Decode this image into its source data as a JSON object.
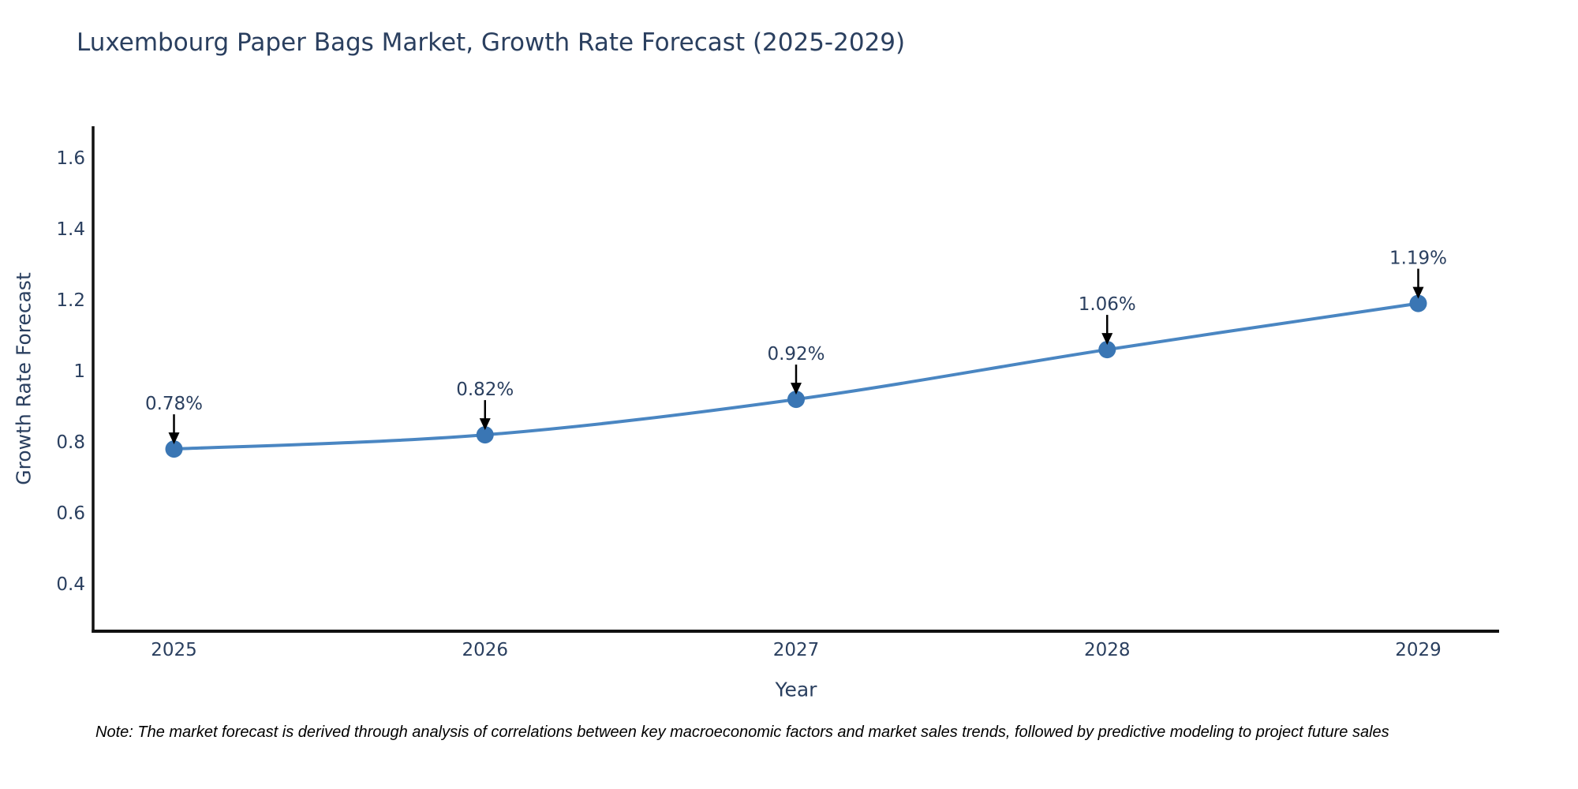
{
  "page": {
    "note": "Note: The market forecast is derived through analysis of correlations between key macroeconomic factors and market sales trends, followed by predictive modeling to project future sales"
  },
  "chart_data": {
    "type": "line",
    "title": "Luxembourg Paper Bags Market, Growth Rate Forecast (2025-2029)",
    "xlabel": "Year",
    "ylabel": "Growth Rate Forecast",
    "x": [
      2025,
      2026,
      2027,
      2028,
      2029
    ],
    "series": [
      {
        "name": "Growth Rate Forecast",
        "values": [
          0.78,
          0.82,
          0.92,
          1.06,
          1.19
        ]
      }
    ],
    "point_labels": [
      "0.78%",
      "0.82%",
      "0.92%",
      "1.06%",
      "1.19%"
    ],
    "xticks": {
      "values": [
        2025,
        2026,
        2027,
        2028,
        2029
      ],
      "labels": [
        "2025",
        "2026",
        "2027",
        "2028",
        "2029"
      ]
    },
    "yticks": {
      "values": [
        0.4,
        0.6,
        0.8,
        1.0,
        1.2,
        1.4,
        1.6
      ],
      "labels": [
        "0.4",
        "0.6",
        "0.8",
        "1",
        "1.2",
        "1.4",
        "1.6"
      ]
    },
    "xlim": [
      2024.74,
      2029.26
    ],
    "ylim": [
      0.267,
      1.689
    ],
    "grid": false,
    "legend": false,
    "line_shape": "spline",
    "colors": {
      "line": "#4a86c2",
      "marker": "#3a76b4",
      "axis": "#111111",
      "text": "#2a3f5f",
      "annotation_arrow": "#000000",
      "background": "#ffffff"
    }
  }
}
